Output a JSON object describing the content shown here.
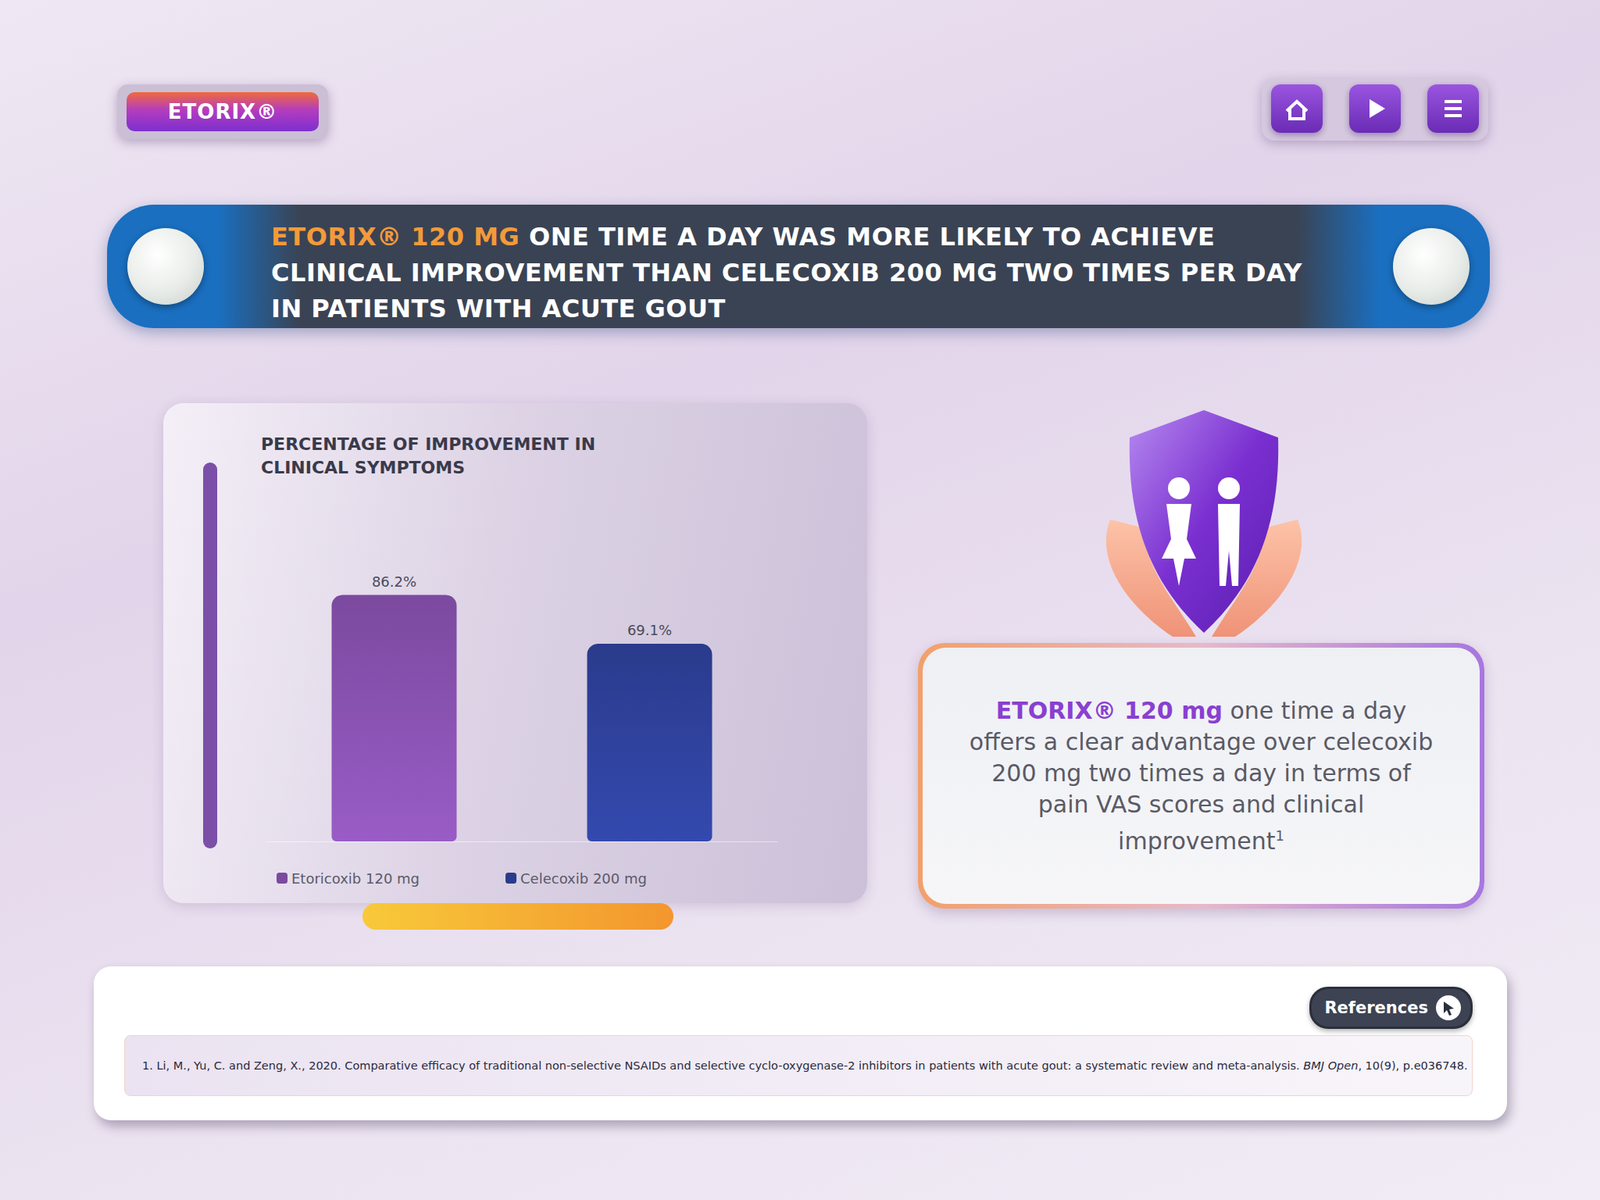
{
  "header": {
    "brand": "ETORIX®",
    "title_highlight": "ETORIX® 120 MG",
    "title_rest": "ONE TIME A DAY WAS MORE LIKELY TO ACHIEVE CLINICAL IMPROVEMENT THAN CELECOXIB 200 MG TWO TIMES PER DAY IN PATIENTS WITH ACUTE GOUT"
  },
  "chart_data": {
    "type": "bar",
    "title": "PERCENTAGE OF IMPROVEMENT IN CLINICAL SYMPTOMS",
    "categories": [
      "Etoricoxib 120 mg",
      "Celecoxib 200 mg"
    ],
    "values": [
      86.2,
      69.1
    ],
    "value_labels": [
      "86.2%",
      "69.1%"
    ],
    "colors": [
      "#7b4a9f",
      "#2a3b8c"
    ],
    "ylim": [
      0,
      130
    ],
    "yticks": [
      0,
      50,
      100
    ],
    "grid": false,
    "tick_labels": false,
    "data_labels": true,
    "legend": "bottom"
  },
  "callout": {
    "highlight": "ETORIX® 120 mg",
    "text": "one time a day offers a clear advantage over celecoxib 200 mg two times a day in terms of pain VAS scores and clinical improvement",
    "note_mark": "1"
  },
  "references": {
    "button": "References",
    "items": [
      {
        "before": "1. Li, M., Yu, C. and Zeng, X., 2020. Comparative efficacy of traditional non-selective NSAIDs and selective cyclo-oxygenase-2 inhibitors in patients with acute gout: a systematic review and meta-analysis. ",
        "journal": "BMJ Open",
        "after": ", 10(9), p.e036748."
      }
    ]
  }
}
